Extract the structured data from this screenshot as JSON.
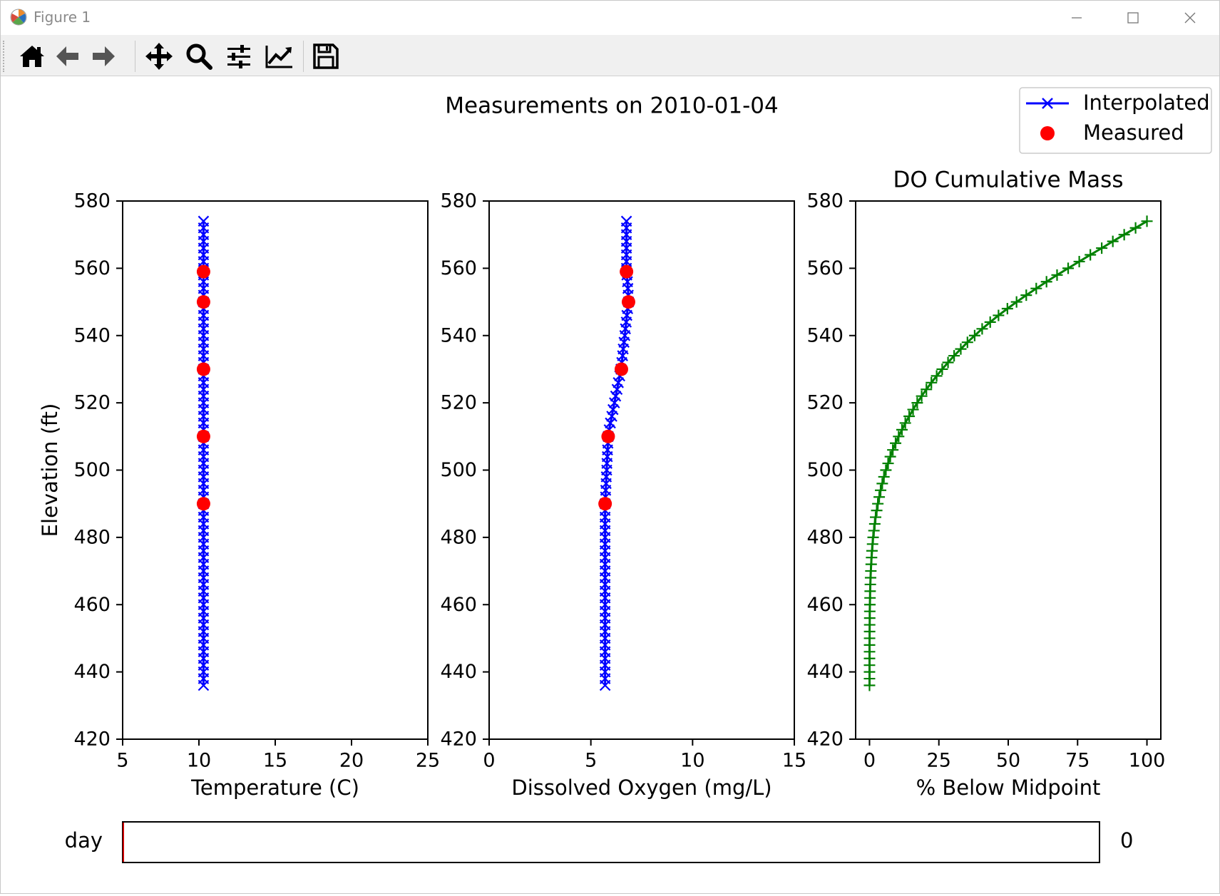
{
  "window": {
    "title": "Figure 1",
    "icon": "matplotlib-logo-icon",
    "controls": [
      "minimize-icon",
      "maximize-icon",
      "close-icon"
    ]
  },
  "toolbar": {
    "buttons": [
      {
        "icon": "home-icon",
        "tooltip": ""
      },
      {
        "icon": "back-arrow-icon",
        "tooltip": ""
      },
      {
        "icon": "forward-arrow-icon",
        "tooltip": ""
      },
      {
        "icon": "pan-move-icon",
        "tooltip": ""
      },
      {
        "icon": "zoom-magnifier-icon",
        "tooltip": ""
      },
      {
        "icon": "subplots-sliders-icon",
        "tooltip": ""
      },
      {
        "icon": "edit-axes-chart-icon",
        "tooltip": ""
      },
      {
        "icon": "save-floppy-icon",
        "tooltip": ""
      }
    ]
  },
  "figure": {
    "suptitle": "Measurements on 2010-01-04",
    "legend": {
      "placement": "top-right",
      "entries": [
        {
          "label": "Interpolated",
          "color": "#0000ff",
          "marker": "x",
          "line": true
        },
        {
          "label": "Measured",
          "color": "#ff0000",
          "marker": "o",
          "line": false
        }
      ]
    },
    "slider": {
      "label": "day",
      "value": 0,
      "value_text": "0",
      "min": 0,
      "max": 1,
      "fill_color": "#cc0000"
    }
  },
  "chart_data": [
    {
      "type": "line",
      "title": "",
      "xlabel": "Temperature (C)",
      "ylabel": "Elevation (ft)",
      "xlim": [
        5,
        25
      ],
      "ylim": [
        420,
        580
      ],
      "xticks": [
        5,
        10,
        15,
        20,
        25
      ],
      "yticks": [
        420,
        440,
        460,
        480,
        500,
        520,
        540,
        560,
        580
      ],
      "grid": false,
      "series": [
        {
          "name": "Interpolated",
          "color": "#0000ff",
          "marker": "x",
          "x": [
            10.3,
            10.3,
            10.3,
            10.3,
            10.3,
            10.3,
            10.3,
            10.3,
            10.3,
            10.3,
            10.3,
            10.3,
            10.3,
            10.3,
            10.3,
            10.3,
            10.3,
            10.3,
            10.3,
            10.3,
            10.3,
            10.3,
            10.3,
            10.3,
            10.3,
            10.3,
            10.3,
            10.3,
            10.3,
            10.3,
            10.3,
            10.3,
            10.3,
            10.3,
            10.3,
            10.3,
            10.3,
            10.3,
            10.3,
            10.3,
            10.3,
            10.3,
            10.3,
            10.3,
            10.3,
            10.3,
            10.3,
            10.3,
            10.3,
            10.3,
            10.3,
            10.3,
            10.3,
            10.3,
            10.3,
            10.3,
            10.3,
            10.3,
            10.3,
            10.3,
            10.3,
            10.3,
            10.3,
            10.3,
            10.3,
            10.3,
            10.3,
            10.3,
            10.3,
            10.3
          ],
          "y": [
            574,
            572,
            570,
            568,
            566,
            564,
            562,
            560,
            558,
            556,
            554,
            552,
            550,
            548,
            546,
            544,
            542,
            540,
            538,
            536,
            534,
            532,
            530,
            528,
            526,
            524,
            522,
            520,
            518,
            516,
            514,
            512,
            510,
            508,
            506,
            504,
            502,
            500,
            498,
            496,
            494,
            492,
            490,
            488,
            486,
            484,
            482,
            480,
            478,
            476,
            474,
            472,
            470,
            468,
            466,
            464,
            462,
            460,
            458,
            456,
            454,
            452,
            450,
            448,
            446,
            444,
            442,
            440,
            438,
            436
          ]
        },
        {
          "name": "Measured",
          "color": "#ff0000",
          "marker": "o",
          "x": [
            10.3,
            10.3,
            10.3,
            10.3,
            10.3
          ],
          "y": [
            559,
            550,
            530,
            510,
            490
          ]
        }
      ]
    },
    {
      "type": "line",
      "title": "",
      "xlabel": "Dissolved Oxygen (mg/L)",
      "ylabel": "",
      "xlim": [
        0,
        15
      ],
      "ylim": [
        420,
        580
      ],
      "xticks": [
        0,
        5,
        10,
        15
      ],
      "yticks": [
        420,
        440,
        460,
        480,
        500,
        520,
        540,
        560,
        580
      ],
      "grid": false,
      "series": [
        {
          "name": "Interpolated",
          "color": "#0000ff",
          "marker": "x",
          "x": [
            6.75,
            6.75,
            6.75,
            6.75,
            6.75,
            6.75,
            6.75,
            6.75,
            6.77,
            6.8,
            6.82,
            6.84,
            6.85,
            6.81,
            6.77,
            6.74,
            6.7,
            6.67,
            6.63,
            6.59,
            6.56,
            6.52,
            6.48,
            6.42,
            6.35,
            6.29,
            6.22,
            6.16,
            6.09,
            6.03,
            5.96,
            5.9,
            5.85,
            5.84,
            5.82,
            5.81,
            5.79,
            5.78,
            5.76,
            5.75,
            5.73,
            5.72,
            5.7,
            5.7,
            5.7,
            5.7,
            5.7,
            5.7,
            5.7,
            5.7,
            5.7,
            5.7,
            5.7,
            5.7,
            5.7,
            5.7,
            5.7,
            5.7,
            5.7,
            5.7,
            5.7,
            5.7,
            5.7,
            5.7,
            5.7,
            5.7,
            5.7,
            5.7,
            5.7,
            5.7
          ],
          "y": [
            574,
            572,
            570,
            568,
            566,
            564,
            562,
            560,
            558,
            556,
            554,
            552,
            550,
            548,
            546,
            544,
            542,
            540,
            538,
            536,
            534,
            532,
            530,
            528,
            526,
            524,
            522,
            520,
            518,
            516,
            514,
            512,
            510,
            508,
            506,
            504,
            502,
            500,
            498,
            496,
            494,
            492,
            490,
            488,
            486,
            484,
            482,
            480,
            478,
            476,
            474,
            472,
            470,
            468,
            466,
            464,
            462,
            460,
            458,
            456,
            454,
            452,
            450,
            448,
            446,
            444,
            442,
            440,
            438,
            436
          ]
        },
        {
          "name": "Measured",
          "color": "#ff0000",
          "marker": "o",
          "x": [
            6.75,
            6.85,
            6.5,
            5.85,
            5.7
          ],
          "y": [
            559,
            550,
            530,
            510,
            490
          ]
        }
      ]
    },
    {
      "type": "line",
      "title": "DO Cumulative Mass",
      "xlabel": "% Below Midpoint",
      "ylabel": "",
      "xlim": [
        -5,
        105
      ],
      "ylim": [
        420,
        580
      ],
      "xticks": [
        0,
        25,
        50,
        75,
        100
      ],
      "yticks": [
        420,
        440,
        460,
        480,
        500,
        520,
        540,
        560,
        580
      ],
      "grid": false,
      "series": [
        {
          "name": "",
          "color": "#008000",
          "marker": "+",
          "x": [
            100,
            95.9,
            91.8,
            87.7,
            83.7,
            79.6,
            75.6,
            71.6,
            67.6,
            63.8,
            60.1,
            56.5,
            53.0,
            49.7,
            46.5,
            43.5,
            40.6,
            37.9,
            35.3,
            32.9,
            30.5,
            28.3,
            26.2,
            24.2,
            22.3,
            20.5,
            18.8,
            17.2,
            15.7,
            14.3,
            12.9,
            11.7,
            10.5,
            9.4,
            8.4,
            7.5,
            6.7,
            5.9,
            5.2,
            4.6,
            4.0,
            3.5,
            3.0,
            2.6,
            2.2,
            1.9,
            1.6,
            1.3,
            1.1,
            0.9,
            0.74,
            0.6,
            0.48,
            0.38,
            0.3,
            0.23,
            0.18,
            0.14,
            0.1,
            0.08,
            0.06,
            0.04,
            0.03,
            0.02,
            0.01,
            0.01,
            0,
            0,
            0,
            0
          ],
          "y": [
            574,
            572,
            570,
            568,
            566,
            564,
            562,
            560,
            558,
            556,
            554,
            552,
            550,
            548,
            546,
            544,
            542,
            540,
            538,
            536,
            534,
            532,
            530,
            528,
            526,
            524,
            522,
            520,
            518,
            516,
            514,
            512,
            510,
            508,
            506,
            504,
            502,
            500,
            498,
            496,
            494,
            492,
            490,
            488,
            486,
            484,
            482,
            480,
            478,
            476,
            474,
            472,
            470,
            468,
            466,
            464,
            462,
            460,
            458,
            456,
            454,
            452,
            450,
            448,
            446,
            444,
            442,
            440,
            438,
            436
          ]
        }
      ]
    }
  ]
}
